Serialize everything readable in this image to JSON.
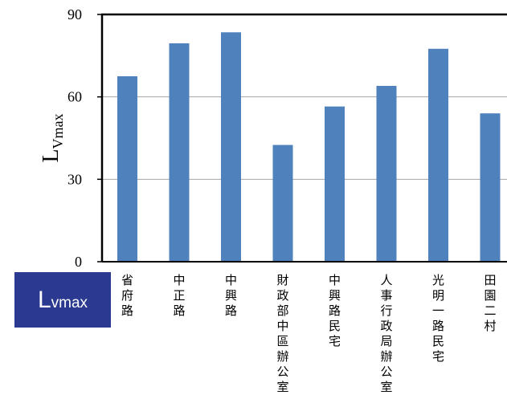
{
  "chart_data": {
    "type": "bar",
    "ylabel_main": "L",
    "ylabel_sub": "Vmax",
    "ylim": [
      0,
      90
    ],
    "yticks": [
      "0",
      "30",
      "60",
      "90"
    ],
    "grid": true,
    "bar_color": "#4f81bd",
    "categories": [
      "省府路",
      "中正路",
      "中興路",
      "財政部中區辦公室",
      "中興路民宅",
      "人事行政局辦公室",
      "光明一路民宅",
      "田園二村"
    ],
    "values": [
      67.5,
      79.5,
      83.5,
      42.5,
      56.5,
      64,
      77.5,
      54
    ]
  },
  "badge": {
    "main": "L",
    "sub": "vmax",
    "bg_color": "#2b3990"
  }
}
